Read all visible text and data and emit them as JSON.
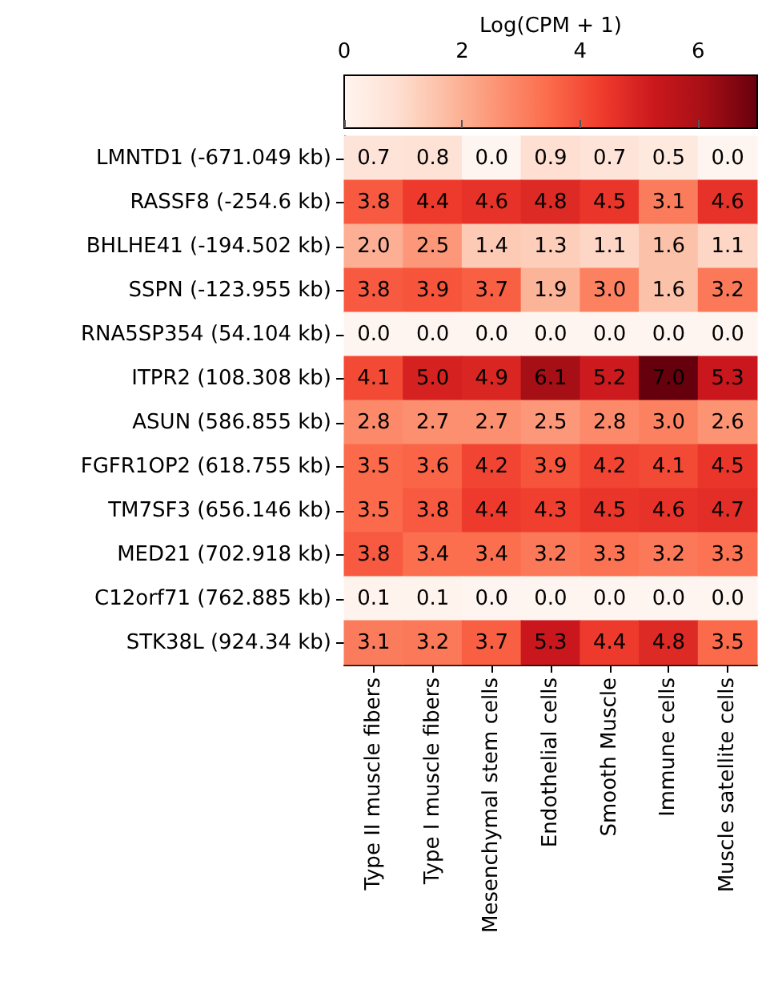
{
  "chart_data": {
    "type": "heatmap",
    "clabel": "Log(CPM + 1)",
    "categories": [
      "Type II muscle fibers",
      "Type I muscle fibers",
      "Mesenchymal stem cells",
      "Endothelial cells",
      "Smooth Muscle",
      "Immune cells",
      "Muscle satellite cells"
    ],
    "y_categories": [
      "LMNTD1 (-671.049 kb)",
      "RASSF8 (-254.6 kb)",
      "BHLHE41 (-194.502 kb)",
      "SSPN (-123.955 kb)",
      "RNA5SP354 (54.104 kb)",
      "ITPR2 (108.308 kb)",
      "ASUN (586.855 kb)",
      "FGFR1OP2 (618.755 kb)",
      "TM7SF3 (656.146 kb)",
      "MED21 (702.918 kb)",
      "C12orf71 (762.885 kb)",
      "STK38L (924.34 kb)"
    ],
    "cells": [
      [
        0.7,
        0.8,
        0.0,
        0.9,
        0.7,
        0.5,
        0.0
      ],
      [
        3.8,
        4.4,
        4.6,
        4.8,
        4.5,
        3.1,
        4.6
      ],
      [
        2.0,
        2.5,
        1.4,
        1.3,
        1.1,
        1.6,
        1.1
      ],
      [
        3.8,
        3.9,
        3.7,
        1.9,
        3.0,
        1.6,
        3.2
      ],
      [
        0.0,
        0.0,
        0.0,
        0.0,
        0.0,
        0.0,
        0.0
      ],
      [
        4.1,
        5.0,
        4.9,
        6.1,
        5.2,
        7.0,
        5.3
      ],
      [
        2.8,
        2.7,
        2.7,
        2.5,
        2.8,
        3.0,
        2.6
      ],
      [
        3.5,
        3.6,
        4.2,
        3.9,
        4.2,
        4.1,
        4.5
      ],
      [
        3.5,
        3.8,
        4.4,
        4.3,
        4.5,
        4.6,
        4.7
      ],
      [
        3.8,
        3.4,
        3.4,
        3.2,
        3.3,
        3.2,
        3.3
      ],
      [
        0.1,
        0.1,
        0.0,
        0.0,
        0.0,
        0.0,
        0.0
      ],
      [
        3.1,
        3.2,
        3.7,
        5.3,
        4.4,
        4.8,
        3.5
      ]
    ],
    "cell_labels": [
      [
        "0.7",
        "0.8",
        "0.0",
        "0.9",
        "0.7",
        "0.5",
        "0.0"
      ],
      [
        "3.8",
        "4.4",
        "4.6",
        "4.8",
        "4.5",
        "3.1",
        "4.6"
      ],
      [
        "2.0",
        "2.5",
        "1.4",
        "1.3",
        "1.1",
        "1.6",
        "1.1"
      ],
      [
        "3.8",
        "3.9",
        "3.7",
        "1.9",
        "3.0",
        "1.6",
        "3.2"
      ],
      [
        "0.0",
        "0.0",
        "0.0",
        "0.0",
        "0.0",
        "0.0",
        "0.0"
      ],
      [
        "4.1",
        "5.0",
        "4.9",
        "6.1",
        "5.2",
        "7.0",
        "5.3"
      ],
      [
        "2.8",
        "2.7",
        "2.7",
        "2.5",
        "2.8",
        "3.0",
        "2.6"
      ],
      [
        "3.5",
        "3.6",
        "4.2",
        "3.9",
        "4.2",
        "4.1",
        "4.5"
      ],
      [
        "3.5",
        "3.8",
        "4.4",
        "4.3",
        "4.5",
        "4.6",
        "4.7"
      ],
      [
        "3.8",
        "3.4",
        "3.4",
        "3.2",
        "3.3",
        "3.2",
        "3.3"
      ],
      [
        "0.1",
        "0.1",
        "0.0",
        "0.0",
        "0.0",
        "0.0",
        "0.0"
      ],
      [
        "3.1",
        "3.2",
        "3.7",
        "5.3",
        "4.4",
        "4.8",
        "3.5"
      ]
    ],
    "clim": [
      0,
      7
    ],
    "cticks": [
      0,
      2,
      4,
      6
    ]
  }
}
